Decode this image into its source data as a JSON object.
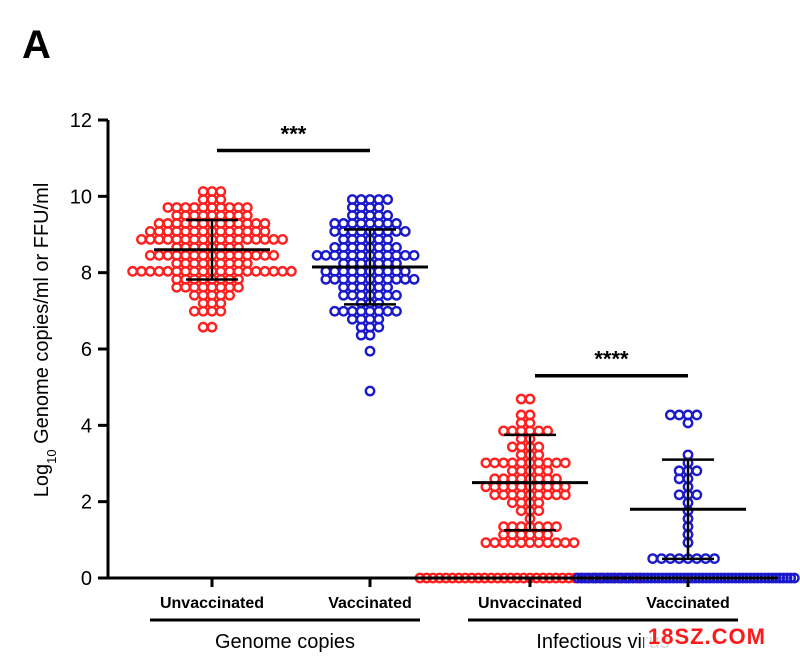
{
  "panel_label": "A",
  "watermark": "18SZ.COM",
  "chart_data": {
    "type": "scatter",
    "ylabel_prefix": "Log",
    "ylabel_sub": "10",
    "ylabel_rest": " Genome copies/ml or  FFU/ml",
    "ylim": [
      0,
      12
    ],
    "yticks": [
      0,
      2,
      4,
      6,
      8,
      10,
      12
    ],
    "categories": [
      "Unvaccinated",
      "Vaccinated",
      "Unvaccinated",
      "Vaccinated"
    ],
    "groups": [
      {
        "label": "Genome copies",
        "categories": [
          0,
          1
        ]
      },
      {
        "label": "Infectious virus",
        "categories": [
          2,
          3
        ]
      }
    ],
    "colors": {
      "unvaccinated": "#ff2020",
      "vaccinated": "#1a1acc"
    },
    "series": [
      {
        "category": 0,
        "color": "#ff2020",
        "count": 150,
        "mean": 8.6,
        "sd": 0.78,
        "min": 6.6,
        "max": 10.2,
        "zeros": 0
      },
      {
        "category": 1,
        "color": "#1a1acc",
        "count": 120,
        "mean": 8.15,
        "sd": 0.98,
        "min": 4.8,
        "max": 10.0,
        "zeros": 0
      },
      {
        "category": 2,
        "color": "#ff2020",
        "count": 130,
        "mean": 2.5,
        "sd": 1.25,
        "min": 1.0,
        "max": 4.6,
        "zeros": 35
      },
      {
        "category": 3,
        "color": "#1a1acc",
        "count": 90,
        "mean": 1.8,
        "sd": 1.3,
        "min": 0.5,
        "max": 4.2,
        "zeros": 60
      }
    ],
    "significance": [
      {
        "between": [
          0,
          1
        ],
        "y": 11.2,
        "label": "***"
      },
      {
        "between": [
          2,
          3
        ],
        "y": 5.3,
        "label": "****"
      }
    ]
  }
}
